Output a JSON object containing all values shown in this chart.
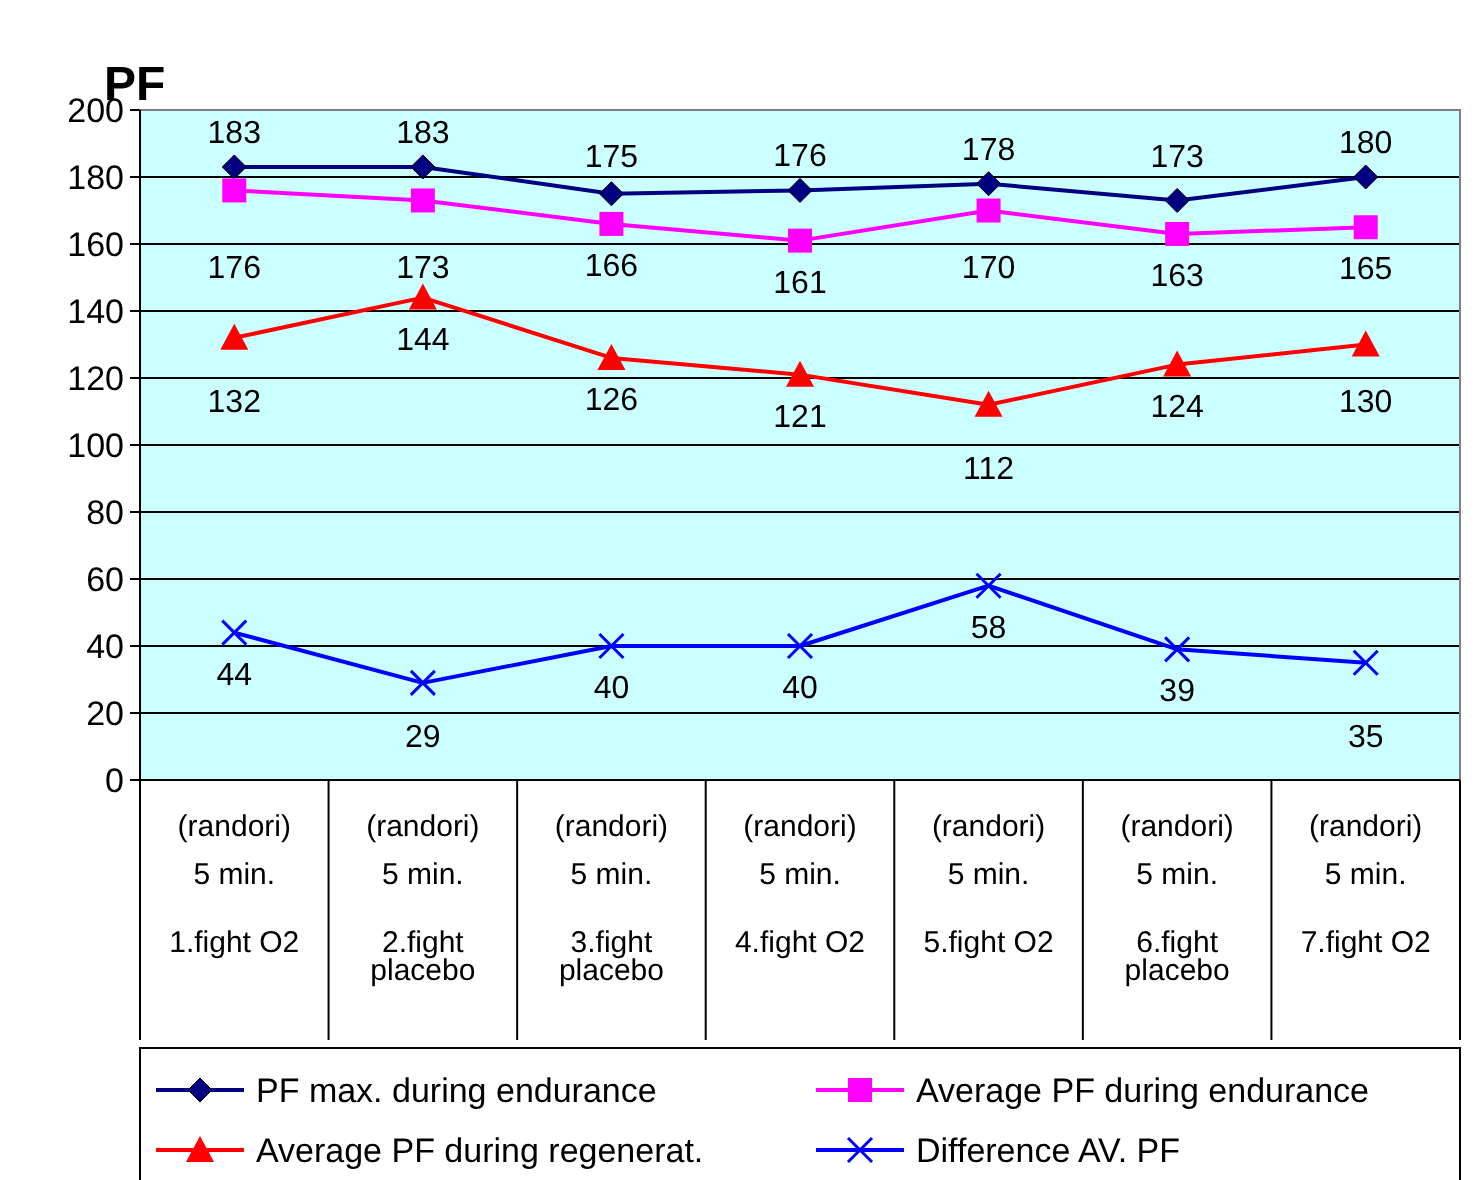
{
  "chart_data": {
    "type": "line",
    "ylabel": "PF",
    "categories": [
      "(randori)\n5 min.\n1.fight O2",
      "(randori)\n5 min.\n2.fight\nplacebo",
      "(randori)\n5 min.\n3.fight\nplacebo",
      "(randori)\n5 min.\n4.fight O2",
      "(randori)\n5 min.\n5.fight O2",
      "(randori)\n5 min.\n6.fight\nplacebo",
      "(randori)\n5 min.\n7.fight O2"
    ],
    "series": [
      {
        "name": "PF max. during endurance",
        "color": "#000080",
        "marker": "diamond",
        "values": [
          183,
          183,
          175,
          176,
          178,
          173,
          180
        ]
      },
      {
        "name": "Average PF during endurance",
        "color": "#ff00ff",
        "marker": "square",
        "values": [
          176,
          173,
          166,
          161,
          170,
          163,
          165
        ]
      },
      {
        "name": "Average PF during regenerat.",
        "color": "#ff0000",
        "marker": "triangle",
        "values": [
          132,
          144,
          126,
          121,
          112,
          124,
          130
        ]
      },
      {
        "name": "Difference AV. PF",
        "color": "#0000ff",
        "marker": "cross",
        "values": [
          44,
          29,
          40,
          40,
          58,
          39,
          35
        ]
      }
    ],
    "ylim": [
      0,
      200
    ],
    "yticks": [
      0,
      20,
      40,
      60,
      80,
      100,
      120,
      140,
      160,
      180,
      200
    ],
    "grid": "y",
    "legend": "bottom",
    "data_labels": true
  }
}
